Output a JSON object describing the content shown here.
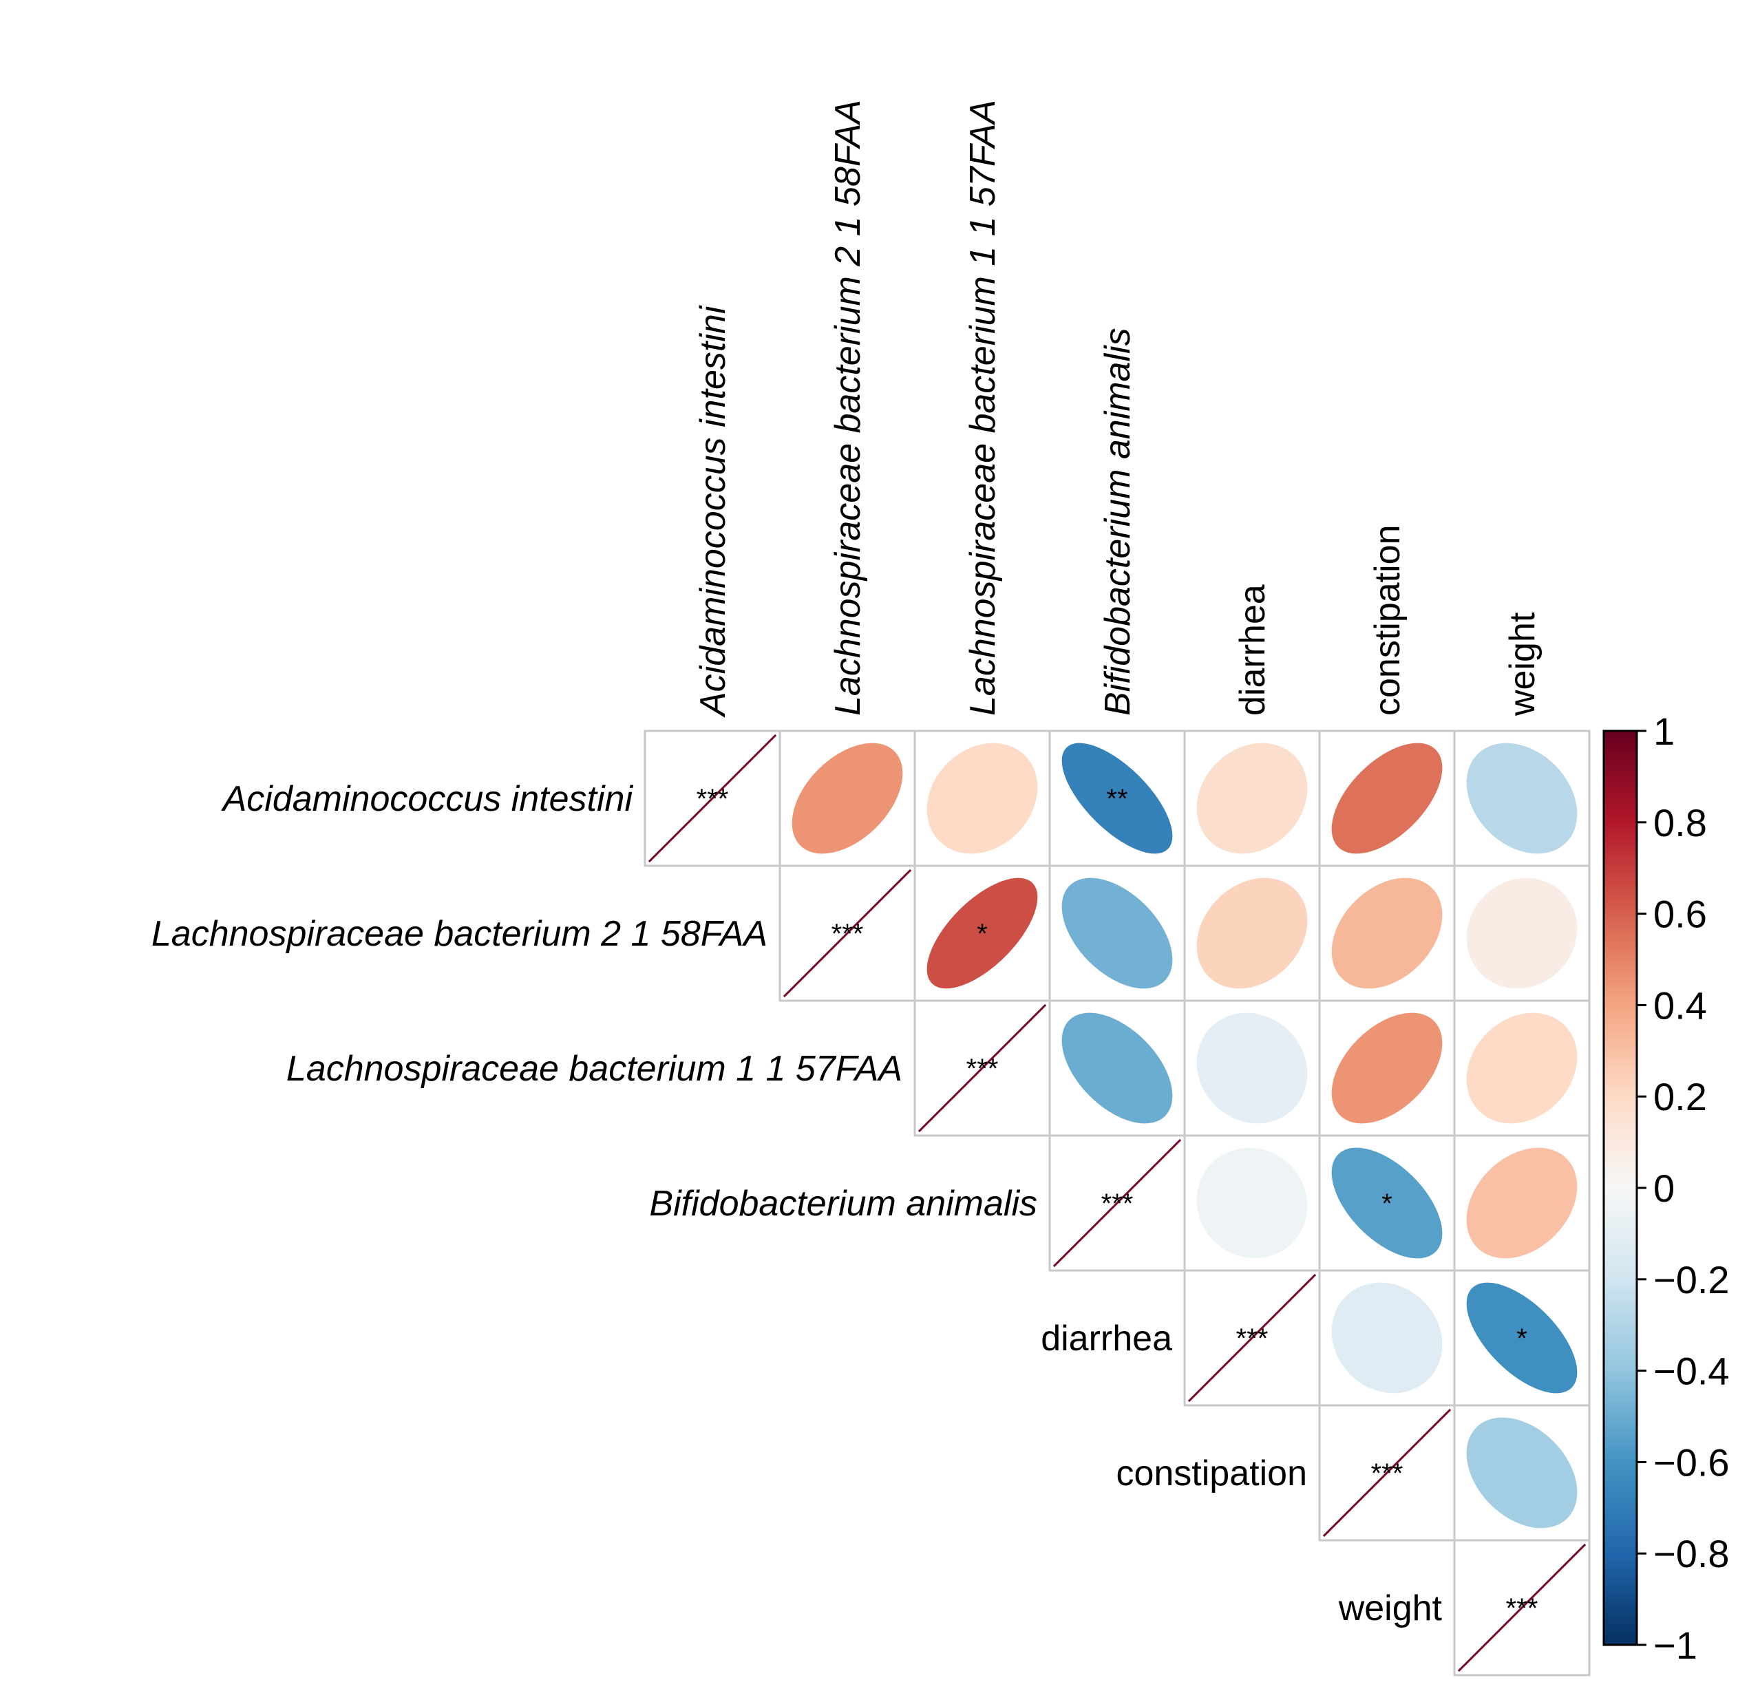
{
  "chart_data": {
    "type": "heatmap",
    "variant": "upper-triangular correlation matrix (ellipse glyphs)",
    "variables": [
      {
        "label": "Acidaminococcus intestini",
        "italic": true
      },
      {
        "label": "Lachnospiraceae bacterium 2 1 58FAA",
        "italic": true
      },
      {
        "label": "Lachnospiraceae bacterium 1 1 57FAA",
        "italic": true
      },
      {
        "label": "Bifidobacterium animalis",
        "italic": true
      },
      {
        "label": "diarrhea",
        "italic": false
      },
      {
        "label": "constipation",
        "italic": false
      },
      {
        "label": "weight",
        "italic": false
      }
    ],
    "cells": [
      {
        "row": 0,
        "col": 0,
        "r": 1.0,
        "sig": "***"
      },
      {
        "row": 0,
        "col": 1,
        "r": 0.45,
        "sig": ""
      },
      {
        "row": 0,
        "col": 2,
        "r": 0.2,
        "sig": ""
      },
      {
        "row": 0,
        "col": 3,
        "r": -0.68,
        "sig": "**"
      },
      {
        "row": 0,
        "col": 4,
        "r": 0.18,
        "sig": ""
      },
      {
        "row": 0,
        "col": 5,
        "r": 0.55,
        "sig": ""
      },
      {
        "row": 0,
        "col": 6,
        "r": -0.28,
        "sig": ""
      },
      {
        "row": 1,
        "col": 1,
        "r": 1.0,
        "sig": "***"
      },
      {
        "row": 1,
        "col": 2,
        "r": 0.65,
        "sig": "*"
      },
      {
        "row": 1,
        "col": 3,
        "r": -0.48,
        "sig": ""
      },
      {
        "row": 1,
        "col": 4,
        "r": 0.23,
        "sig": ""
      },
      {
        "row": 1,
        "col": 5,
        "r": 0.33,
        "sig": ""
      },
      {
        "row": 1,
        "col": 6,
        "r": 0.08,
        "sig": ""
      },
      {
        "row": 2,
        "col": 2,
        "r": 1.0,
        "sig": "***"
      },
      {
        "row": 2,
        "col": 3,
        "r": -0.5,
        "sig": ""
      },
      {
        "row": 2,
        "col": 4,
        "r": -0.1,
        "sig": ""
      },
      {
        "row": 2,
        "col": 5,
        "r": 0.45,
        "sig": ""
      },
      {
        "row": 2,
        "col": 6,
        "r": 0.2,
        "sig": ""
      },
      {
        "row": 3,
        "col": 3,
        "r": 1.0,
        "sig": "***"
      },
      {
        "row": 3,
        "col": 4,
        "r": -0.05,
        "sig": ""
      },
      {
        "row": 3,
        "col": 5,
        "r": -0.55,
        "sig": "*"
      },
      {
        "row": 3,
        "col": 6,
        "r": 0.3,
        "sig": ""
      },
      {
        "row": 4,
        "col": 4,
        "r": 1.0,
        "sig": "***"
      },
      {
        "row": 4,
        "col": 5,
        "r": -0.12,
        "sig": ""
      },
      {
        "row": 4,
        "col": 6,
        "r": -0.62,
        "sig": "*"
      },
      {
        "row": 5,
        "col": 5,
        "r": 1.0,
        "sig": "***"
      },
      {
        "row": 5,
        "col": 6,
        "r": -0.35,
        "sig": ""
      },
      {
        "row": 6,
        "col": 6,
        "r": 1.0,
        "sig": "***"
      }
    ],
    "colorbar": {
      "range": [
        -1,
        1
      ],
      "ticks": [
        "1",
        "0.8",
        "0.6",
        "0.4",
        "0.2",
        "0",
        "−0.2",
        "−0.4",
        "−0.6",
        "−0.8",
        "−1"
      ],
      "tick_values": [
        1,
        0.8,
        0.6,
        0.4,
        0.2,
        0,
        -0.2,
        -0.4,
        -0.6,
        -0.8,
        -1
      ],
      "palette": [
        "#053061",
        "#2166AC",
        "#4393C3",
        "#92C5DE",
        "#D1E5F0",
        "#F7F7F7",
        "#FDDBC7",
        "#F4A582",
        "#D6604D",
        "#B2182B",
        "#67001F"
      ]
    },
    "colors": {
      "grid": "#c8c8c8",
      "diagonal_line": "#7a0b24",
      "colorbar_border": "#000000"
    }
  }
}
